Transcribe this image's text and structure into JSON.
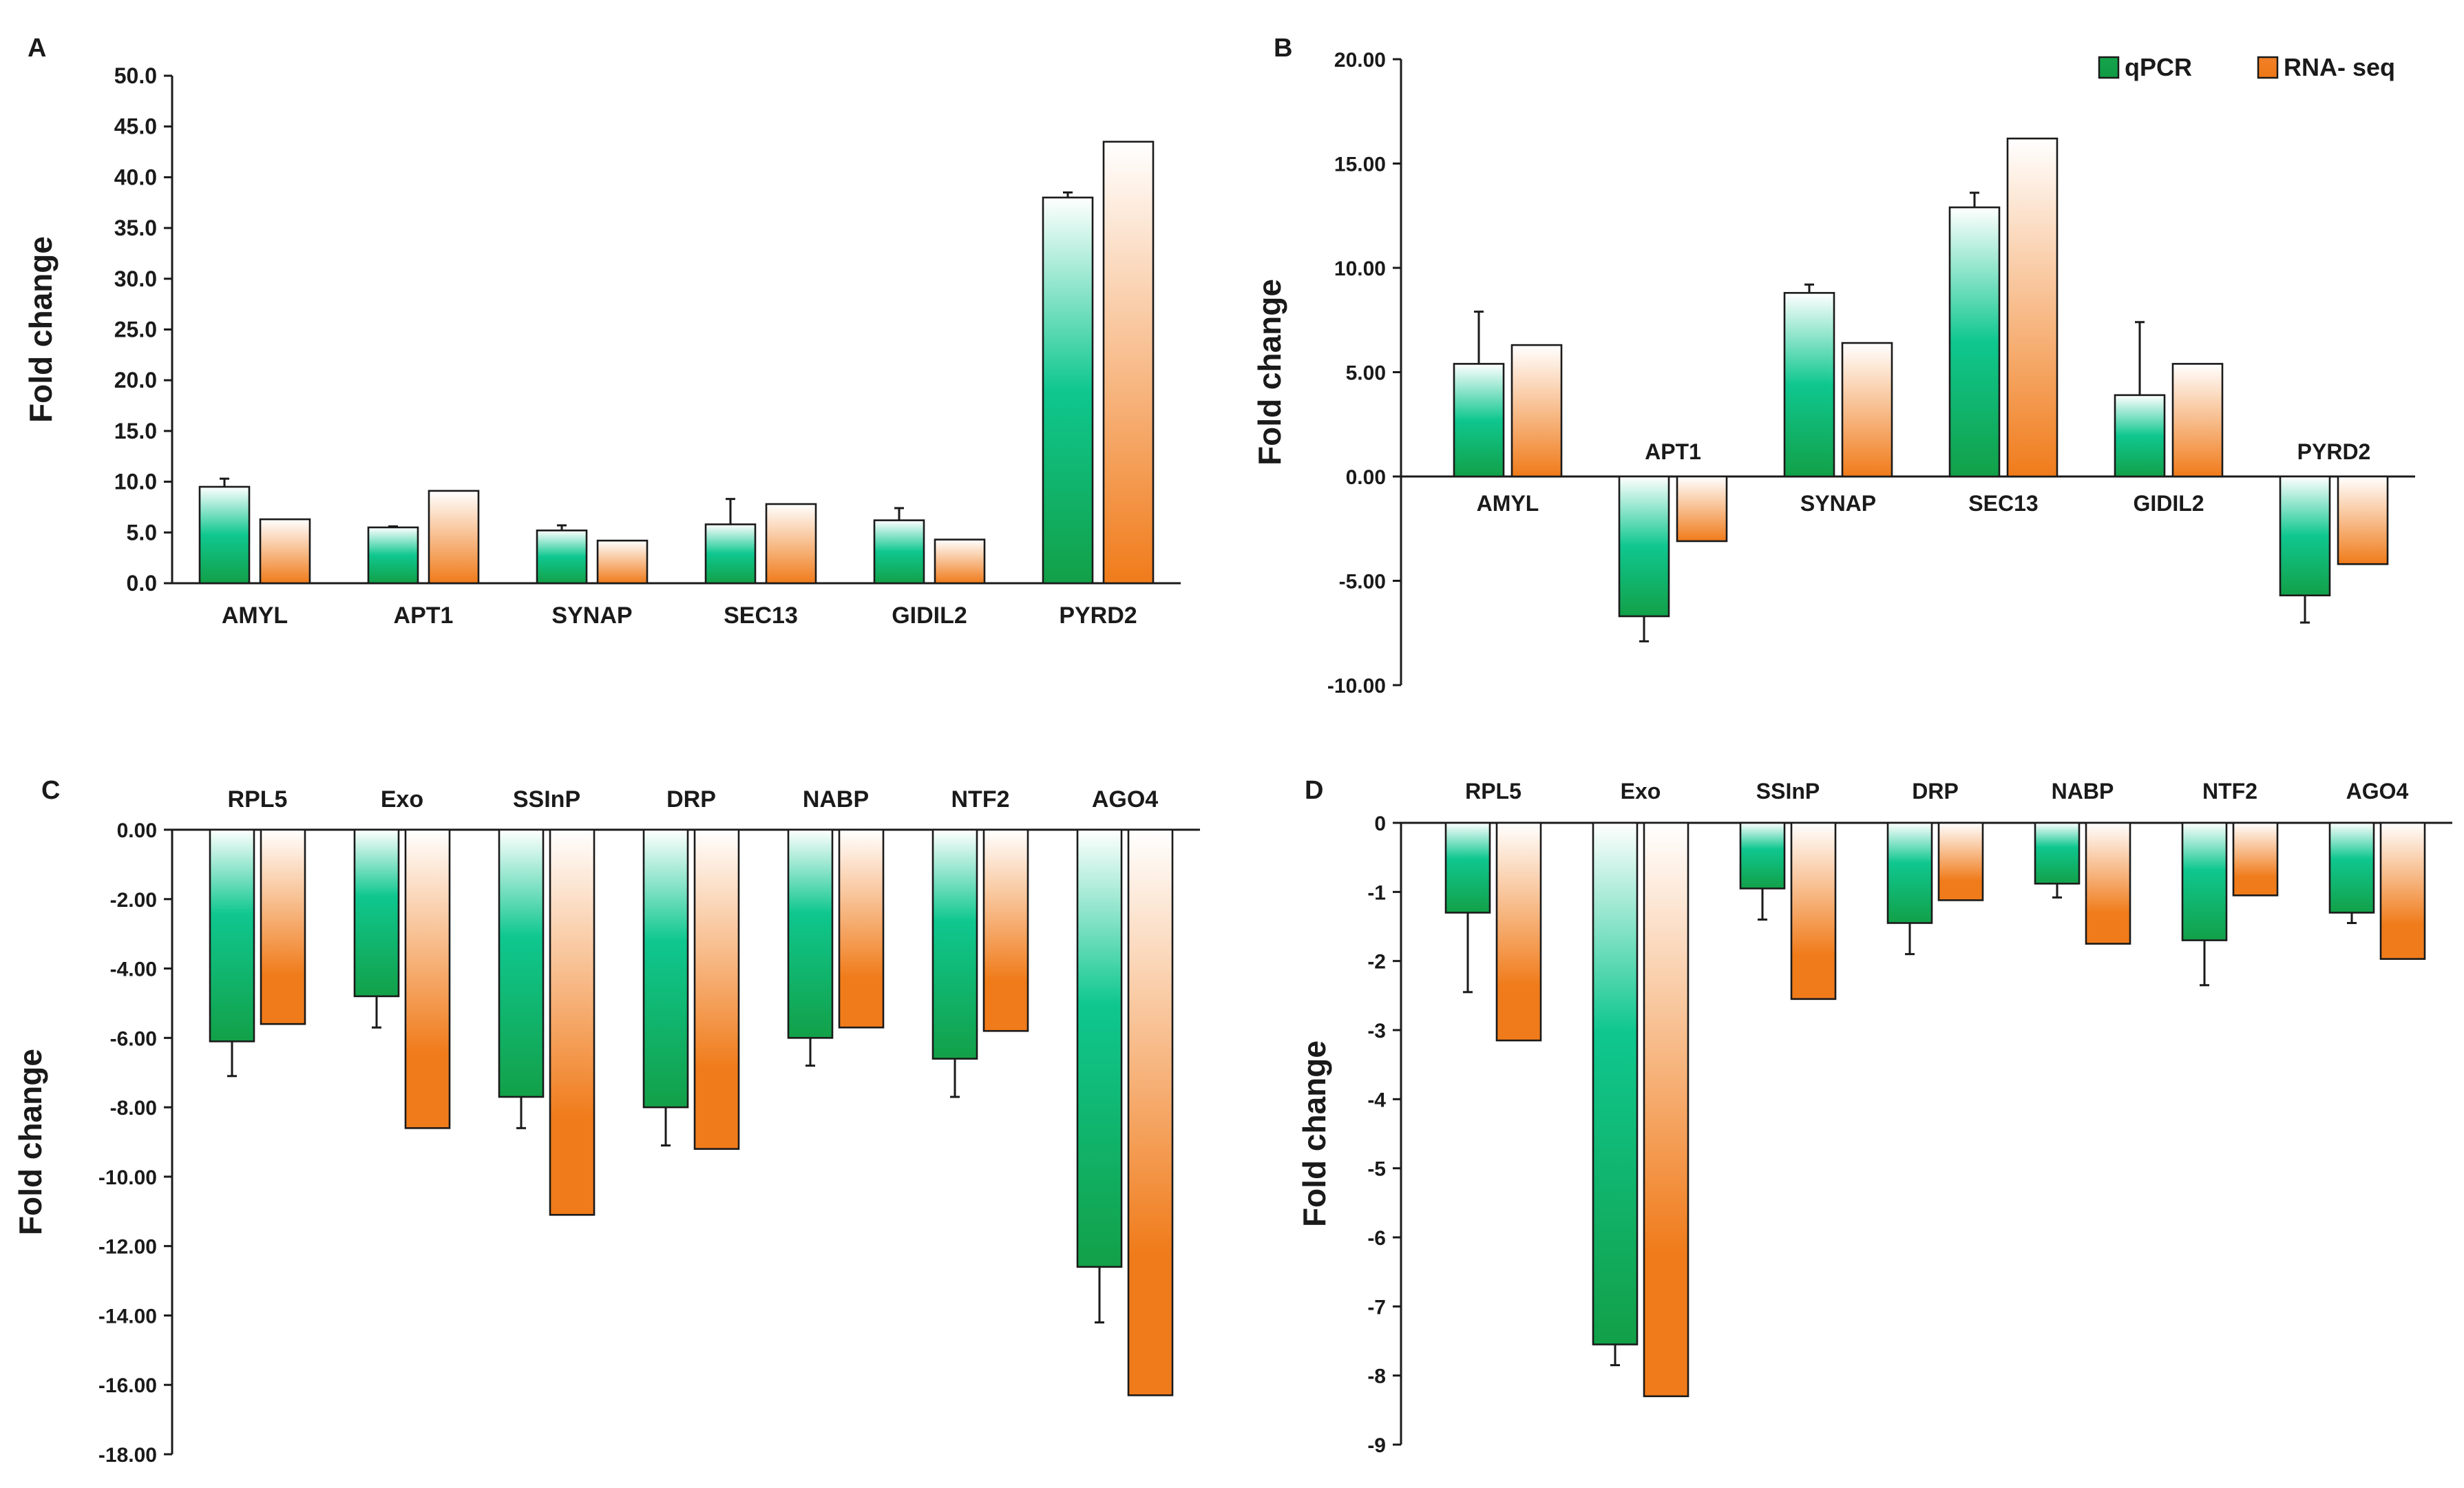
{
  "legend": {
    "series": [
      "qPCR",
      "RNA- seq"
    ]
  },
  "colors": {
    "qpcr_dark": "#12a048",
    "qpcr_mid": "#0fc78f",
    "qpcr_light": "#ffffff",
    "rna_dark": "#f07b1a",
    "rna_light": "#ffffff",
    "text": "#1a1a1a"
  },
  "chart_data": [
    {
      "panel": "A",
      "type": "bar",
      "ylabel": "Fold change",
      "ylim": [
        0,
        50
      ],
      "yticks": [
        "0.0",
        "5.0",
        "10.0",
        "15.0",
        "20.0",
        "25.0",
        "30.0",
        "35.0",
        "40.0",
        "45.0",
        "50.0"
      ],
      "categories": [
        "AMYL",
        "APT1",
        "SYNAP",
        "SEC13",
        "GIDIL2",
        "PYRD2"
      ],
      "series": [
        {
          "name": "qPCR",
          "values": [
            9.5,
            5.5,
            5.2,
            5.8,
            6.2,
            38.0
          ],
          "errors": [
            0.8,
            0.1,
            0.5,
            2.5,
            1.2,
            0.5
          ]
        },
        {
          "name": "RNA- seq",
          "values": [
            6.3,
            9.1,
            4.2,
            7.8,
            4.3,
            43.5
          ]
        }
      ]
    },
    {
      "panel": "B",
      "type": "bar",
      "ylabel": "Fold change",
      "ylim": [
        -10,
        20
      ],
      "yticks": [
        "-10.00",
        "-5.00",
        "0.00",
        "5.00",
        "10.00",
        "15.00",
        "20.00"
      ],
      "categories": [
        "AMYL",
        "APT1",
        "SYNAP",
        "SEC13",
        "GIDIL2",
        "PYRD2"
      ],
      "series": [
        {
          "name": "qPCR",
          "values": [
            5.4,
            -6.7,
            8.8,
            12.9,
            3.9,
            -5.7
          ],
          "errors": [
            2.5,
            1.2,
            0.4,
            0.7,
            3.5,
            1.3
          ]
        },
        {
          "name": "RNA- seq",
          "values": [
            6.3,
            -3.1,
            6.4,
            16.2,
            5.4,
            -4.2
          ]
        }
      ]
    },
    {
      "panel": "C",
      "type": "bar",
      "ylabel": "Fold change",
      "ylim": [
        -18,
        0
      ],
      "yticks": [
        "-18.00",
        "-16.00",
        "-14.00",
        "-12.00",
        "-10.00",
        "-8.00",
        "-6.00",
        "-4.00",
        "-2.00",
        "0.00"
      ],
      "categories": [
        "RPL5",
        "Exo",
        "SSInP",
        "DRP",
        "NABP",
        "NTF2",
        "AGO4"
      ],
      "series": [
        {
          "name": "qPCR",
          "values": [
            -6.1,
            -4.8,
            -7.7,
            -8.0,
            -6.0,
            -6.6,
            -12.6
          ],
          "errors": [
            1.0,
            0.9,
            0.9,
            1.1,
            0.8,
            1.1,
            1.6
          ]
        },
        {
          "name": "RNA- seq",
          "values": [
            -5.6,
            -8.6,
            -11.1,
            -9.2,
            -5.7,
            -5.8,
            -16.3
          ]
        }
      ]
    },
    {
      "panel": "D",
      "type": "bar",
      "ylabel": "Fold change",
      "ylim": [
        -9,
        0
      ],
      "yticks": [
        "-9",
        "-8",
        "-7",
        "-6",
        "-5",
        "-4",
        "-3",
        "-2",
        "-1",
        "0"
      ],
      "categories": [
        "RPL5",
        "Exo",
        "SSInP",
        "DRP",
        "NABP",
        "NTF2",
        "AGO4"
      ],
      "series": [
        {
          "name": "qPCR",
          "values": [
            -1.3,
            -7.55,
            -0.95,
            -1.45,
            -0.88,
            -1.7,
            -1.3
          ],
          "errors": [
            1.15,
            0.3,
            0.45,
            0.45,
            0.2,
            0.65,
            0.15
          ]
        },
        {
          "name": "RNA- seq",
          "values": [
            -3.15,
            -8.3,
            -2.55,
            -1.12,
            -1.75,
            -1.05,
            -1.97
          ]
        }
      ]
    }
  ]
}
